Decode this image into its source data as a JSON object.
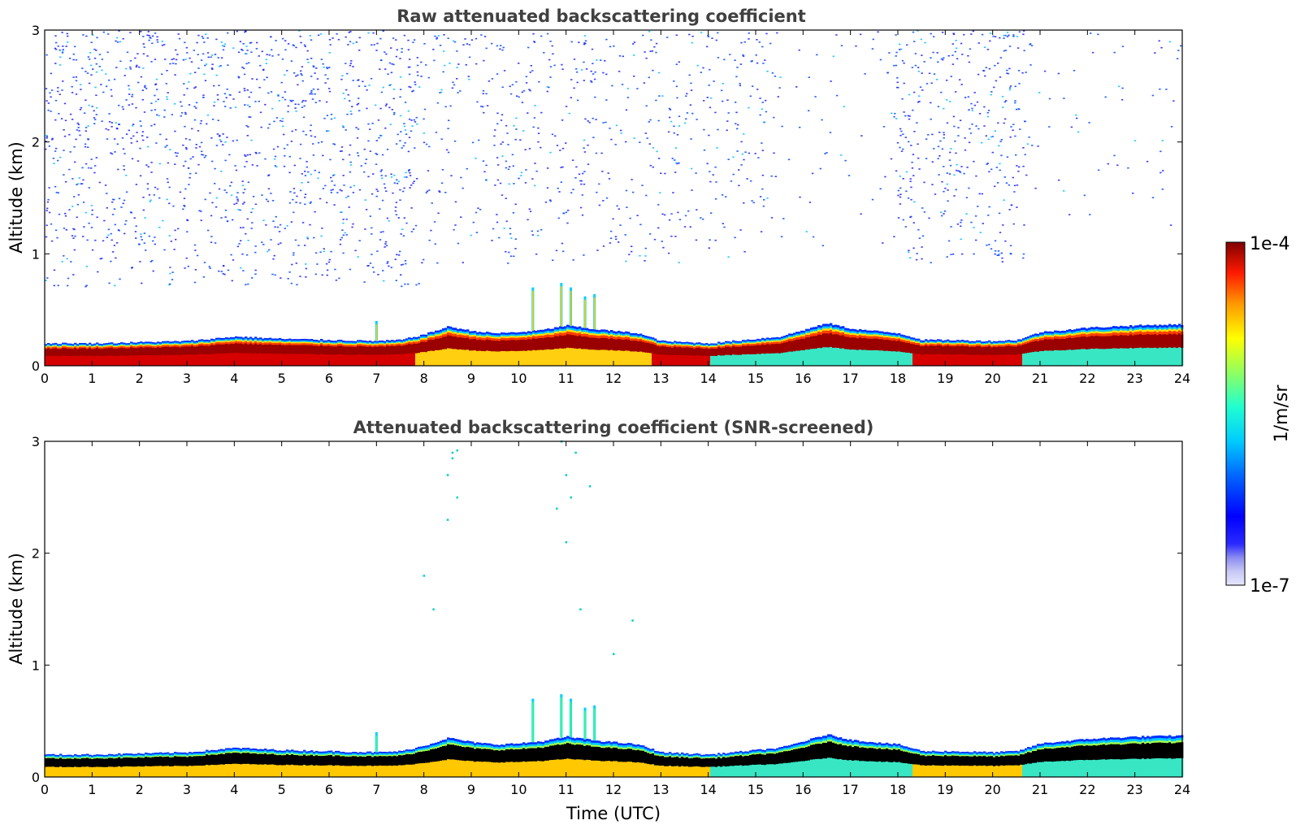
{
  "chart_data": [
    {
      "type": "heatmap",
      "title": "Raw attenuated backscattering coefficient",
      "xlabel": "",
      "ylabel": "Altitude (km)",
      "xlim": [
        0,
        24
      ],
      "ylim": [
        0,
        3
      ],
      "x_ticks": [
        "0",
        "1",
        "2",
        "3",
        "4",
        "5",
        "6",
        "7",
        "8",
        "9",
        "10",
        "11",
        "12",
        "13",
        "14",
        "15",
        "16",
        "17",
        "18",
        "19",
        "20",
        "21",
        "22",
        "23",
        "24"
      ],
      "y_ticks": [
        "0",
        "1",
        "2",
        "3"
      ],
      "layer_top_km": [
        [
          0,
          0.2
        ],
        [
          1,
          0.2
        ],
        [
          2,
          0.21
        ],
        [
          3,
          0.22
        ],
        [
          3.5,
          0.24
        ],
        [
          4,
          0.26
        ],
        [
          5,
          0.24
        ],
        [
          6,
          0.23
        ],
        [
          7,
          0.22
        ],
        [
          7.5,
          0.23
        ],
        [
          8,
          0.28
        ],
        [
          8.5,
          0.35
        ],
        [
          9,
          0.31
        ],
        [
          9.5,
          0.29
        ],
        [
          10,
          0.3
        ],
        [
          10.5,
          0.32
        ],
        [
          11,
          0.36
        ],
        [
          11.5,
          0.33
        ],
        [
          12,
          0.31
        ],
        [
          12.5,
          0.29
        ],
        [
          13,
          0.22
        ],
        [
          14,
          0.2
        ],
        [
          15,
          0.24
        ],
        [
          15.5,
          0.26
        ],
        [
          16,
          0.32
        ],
        [
          16.5,
          0.38
        ],
        [
          17,
          0.33
        ],
        [
          18,
          0.29
        ],
        [
          18.5,
          0.23
        ],
        [
          19,
          0.23
        ],
        [
          20,
          0.22
        ],
        [
          20.5,
          0.23
        ],
        [
          21,
          0.3
        ],
        [
          22,
          0.34
        ],
        [
          23,
          0.36
        ],
        [
          24,
          0.37
        ]
      ],
      "spikes": [
        {
          "x": 7.0,
          "top": 0.4
        },
        {
          "x": 10.3,
          "top": 0.7
        },
        {
          "x": 10.9,
          "top": 0.74
        },
        {
          "x": 11.1,
          "top": 0.7
        },
        {
          "x": 11.4,
          "top": 0.62
        },
        {
          "x": 11.6,
          "top": 0.64
        }
      ],
      "noise_regions": [
        {
          "x": [
            0,
            8.0
          ],
          "y": [
            0.7,
            3.0
          ],
          "density": 0.9
        },
        {
          "x": [
            8.0,
            15.4
          ],
          "y": [
            0.9,
            3.0
          ],
          "density": 0.45
        },
        {
          "x": [
            15.4,
            17.9
          ],
          "y": [
            0.9,
            3.0
          ],
          "density": 0.12
        },
        {
          "x": [
            17.9,
            20.7
          ],
          "y": [
            0.9,
            3.0
          ],
          "density": 0.75
        },
        {
          "x": [
            20.7,
            24.0
          ],
          "y": [
            1.2,
            3.0
          ],
          "density": 0.1
        }
      ]
    },
    {
      "type": "heatmap",
      "title": "Attenuated backscattering coefficient (SNR-screened)",
      "xlabel": "Time (UTC)",
      "ylabel": "Altitude (km)",
      "xlim": [
        0,
        24
      ],
      "ylim": [
        0,
        3
      ],
      "x_ticks": [
        "0",
        "1",
        "2",
        "3",
        "4",
        "5",
        "6",
        "7",
        "8",
        "9",
        "10",
        "11",
        "12",
        "13",
        "14",
        "15",
        "16",
        "17",
        "18",
        "19",
        "20",
        "21",
        "22",
        "23",
        "24"
      ],
      "y_ticks": [
        "0",
        "1",
        "2",
        "3"
      ],
      "scattered_points": [
        [
          8.6,
          2.9
        ],
        [
          8.6,
          2.85
        ],
        [
          8.7,
          2.92
        ],
        [
          8.5,
          2.7
        ],
        [
          8.7,
          2.5
        ],
        [
          8.5,
          2.3
        ],
        [
          8.0,
          1.8
        ],
        [
          8.2,
          1.5
        ],
        [
          10.9,
          3.0
        ],
        [
          11.0,
          2.7
        ],
        [
          11.1,
          2.5
        ],
        [
          10.8,
          2.4
        ],
        [
          11.2,
          2.9
        ],
        [
          11.0,
          2.1
        ],
        [
          11.5,
          2.6
        ],
        [
          12.4,
          1.4
        ],
        [
          12.0,
          1.1
        ],
        [
          11.3,
          1.5
        ]
      ]
    }
  ],
  "colorbar": {
    "label": "1/m/sr",
    "max_label": "1e-4",
    "min_label": "1e-7",
    "colormap": "jet",
    "scale": "log",
    "range": [
      1e-07,
      0.0001
    ]
  }
}
